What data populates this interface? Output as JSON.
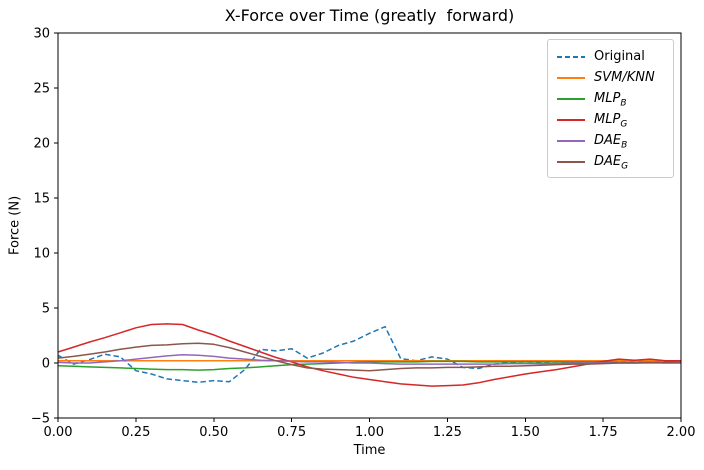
{
  "chart_data": {
    "type": "line",
    "title": "X-Force over Time (greatly  forward)",
    "xlabel": "Time",
    "ylabel": "Force (N)",
    "xlim": [
      0.0,
      2.0
    ],
    "ylim": [
      -5,
      30
    ],
    "grid": false,
    "legend_position": "upper right",
    "frame_color": "#000000",
    "legend_border_color": "#cccccc",
    "x_ticks": [
      0.0,
      0.25,
      0.5,
      0.75,
      1.0,
      1.25,
      1.5,
      1.75,
      2.0
    ],
    "x_tick_labels": [
      "0.00",
      "0.25",
      "0.50",
      "0.75",
      "1.00",
      "1.25",
      "1.50",
      "1.75",
      "2.00"
    ],
    "y_ticks": [
      -5,
      0,
      5,
      10,
      15,
      20,
      25,
      30
    ],
    "y_tick_labels": [
      "−5",
      "0",
      "5",
      "10",
      "15",
      "20",
      "25",
      "30"
    ],
    "x": [
      0.0,
      0.05,
      0.1,
      0.15,
      0.2,
      0.25,
      0.3,
      0.35,
      0.4,
      0.45,
      0.5,
      0.55,
      0.6,
      0.65,
      0.7,
      0.75,
      0.8,
      0.85,
      0.9,
      0.95,
      1.0,
      1.05,
      1.1,
      1.15,
      1.2,
      1.25,
      1.3,
      1.35,
      1.4,
      1.45,
      1.5,
      1.55,
      1.6,
      1.65,
      1.7,
      1.75,
      1.8,
      1.85,
      1.9,
      1.95,
      2.0
    ],
    "series": [
      {
        "id": "original",
        "name": "Original",
        "sub": "",
        "italic": false,
        "color": "#1f77b4",
        "dashed": true,
        "values": [
          0.7,
          -0.1,
          0.3,
          0.8,
          0.55,
          -0.7,
          -1.0,
          -1.45,
          -1.6,
          -1.75,
          -1.6,
          -1.7,
          -0.6,
          1.25,
          1.1,
          1.3,
          0.45,
          0.9,
          1.6,
          2.0,
          2.7,
          3.3,
          0.4,
          0.2,
          0.55,
          0.35,
          -0.4,
          -0.5,
          -0.1,
          0.05,
          0.1,
          0.05,
          0.1,
          0.05,
          0.1,
          0.05,
          0.1,
          0.1,
          0.1,
          0.1,
          0.15
        ]
      },
      {
        "id": "svm-knn",
        "name": "SVM/KNN",
        "sub": "",
        "italic": true,
        "color": "#ff7f0e",
        "dashed": false,
        "values": [
          0.2,
          0.2,
          0.2,
          0.2,
          0.2,
          0.2,
          0.2,
          0.2,
          0.2,
          0.2,
          0.2,
          0.2,
          0.2,
          0.2,
          0.2,
          0.2,
          0.2,
          0.2,
          0.2,
          0.2,
          0.2,
          0.2,
          0.2,
          0.2,
          0.2,
          0.2,
          0.2,
          0.2,
          0.2,
          0.2,
          0.2,
          0.2,
          0.2,
          0.2,
          0.2,
          0.2,
          0.2,
          0.2,
          0.2,
          0.2,
          0.2
        ]
      },
      {
        "id": "mlp-b",
        "name": "MLP",
        "sub": "B",
        "italic": true,
        "color": "#2ca02c",
        "dashed": false,
        "values": [
          -0.25,
          -0.3,
          -0.35,
          -0.4,
          -0.45,
          -0.5,
          -0.55,
          -0.6,
          -0.6,
          -0.65,
          -0.6,
          -0.5,
          -0.45,
          -0.35,
          -0.25,
          -0.15,
          -0.1,
          -0.05,
          0.0,
          0.05,
          0.1,
          0.1,
          0.1,
          0.1,
          0.15,
          0.15,
          0.15,
          0.1,
          0.1,
          0.1,
          0.1,
          0.1,
          0.1,
          0.1,
          0.1,
          0.1,
          0.05,
          0.05,
          0.05,
          0.0,
          0.0
        ]
      },
      {
        "id": "mlp-g",
        "name": "MLP",
        "sub": "G",
        "italic": true,
        "color": "#d62728",
        "dashed": false,
        "values": [
          1.0,
          1.45,
          1.9,
          2.3,
          2.75,
          3.2,
          3.5,
          3.55,
          3.5,
          3.0,
          2.55,
          2.0,
          1.5,
          1.0,
          0.5,
          0.1,
          -0.35,
          -0.7,
          -1.0,
          -1.3,
          -1.5,
          -1.7,
          -1.9,
          -2.0,
          -2.1,
          -2.05,
          -2.0,
          -1.8,
          -1.5,
          -1.25,
          -1.0,
          -0.8,
          -0.6,
          -0.35,
          -0.1,
          0.15,
          0.35,
          0.25,
          0.35,
          0.2,
          0.2
        ]
      },
      {
        "id": "dae-b",
        "name": "DAE",
        "sub": "B",
        "italic": true,
        "color": "#9467bd",
        "dashed": false,
        "values": [
          0.05,
          0.0,
          0.0,
          0.1,
          0.2,
          0.35,
          0.5,
          0.65,
          0.75,
          0.7,
          0.6,
          0.45,
          0.35,
          0.25,
          0.2,
          0.15,
          0.1,
          0.1,
          0.05,
          0.0,
          0.0,
          -0.05,
          -0.1,
          -0.1,
          -0.1,
          -0.1,
          -0.1,
          -0.1,
          -0.1,
          -0.05,
          -0.05,
          -0.05,
          -0.05,
          0.0,
          0.0,
          0.0,
          0.0,
          0.0,
          0.0,
          0.0,
          0.0
        ]
      },
      {
        "id": "dae-g",
        "name": "DAE",
        "sub": "G",
        "italic": true,
        "color": "#8c564b",
        "dashed": false,
        "values": [
          0.45,
          0.6,
          0.8,
          1.0,
          1.25,
          1.45,
          1.6,
          1.65,
          1.75,
          1.8,
          1.7,
          1.4,
          1.0,
          0.6,
          0.2,
          -0.15,
          -0.45,
          -0.55,
          -0.6,
          -0.65,
          -0.7,
          -0.6,
          -0.5,
          -0.45,
          -0.45,
          -0.4,
          -0.4,
          -0.35,
          -0.3,
          -0.3,
          -0.25,
          -0.2,
          -0.15,
          -0.1,
          -0.1,
          -0.05,
          0.0,
          0.0,
          0.05,
          0.05,
          0.1
        ]
      }
    ]
  }
}
